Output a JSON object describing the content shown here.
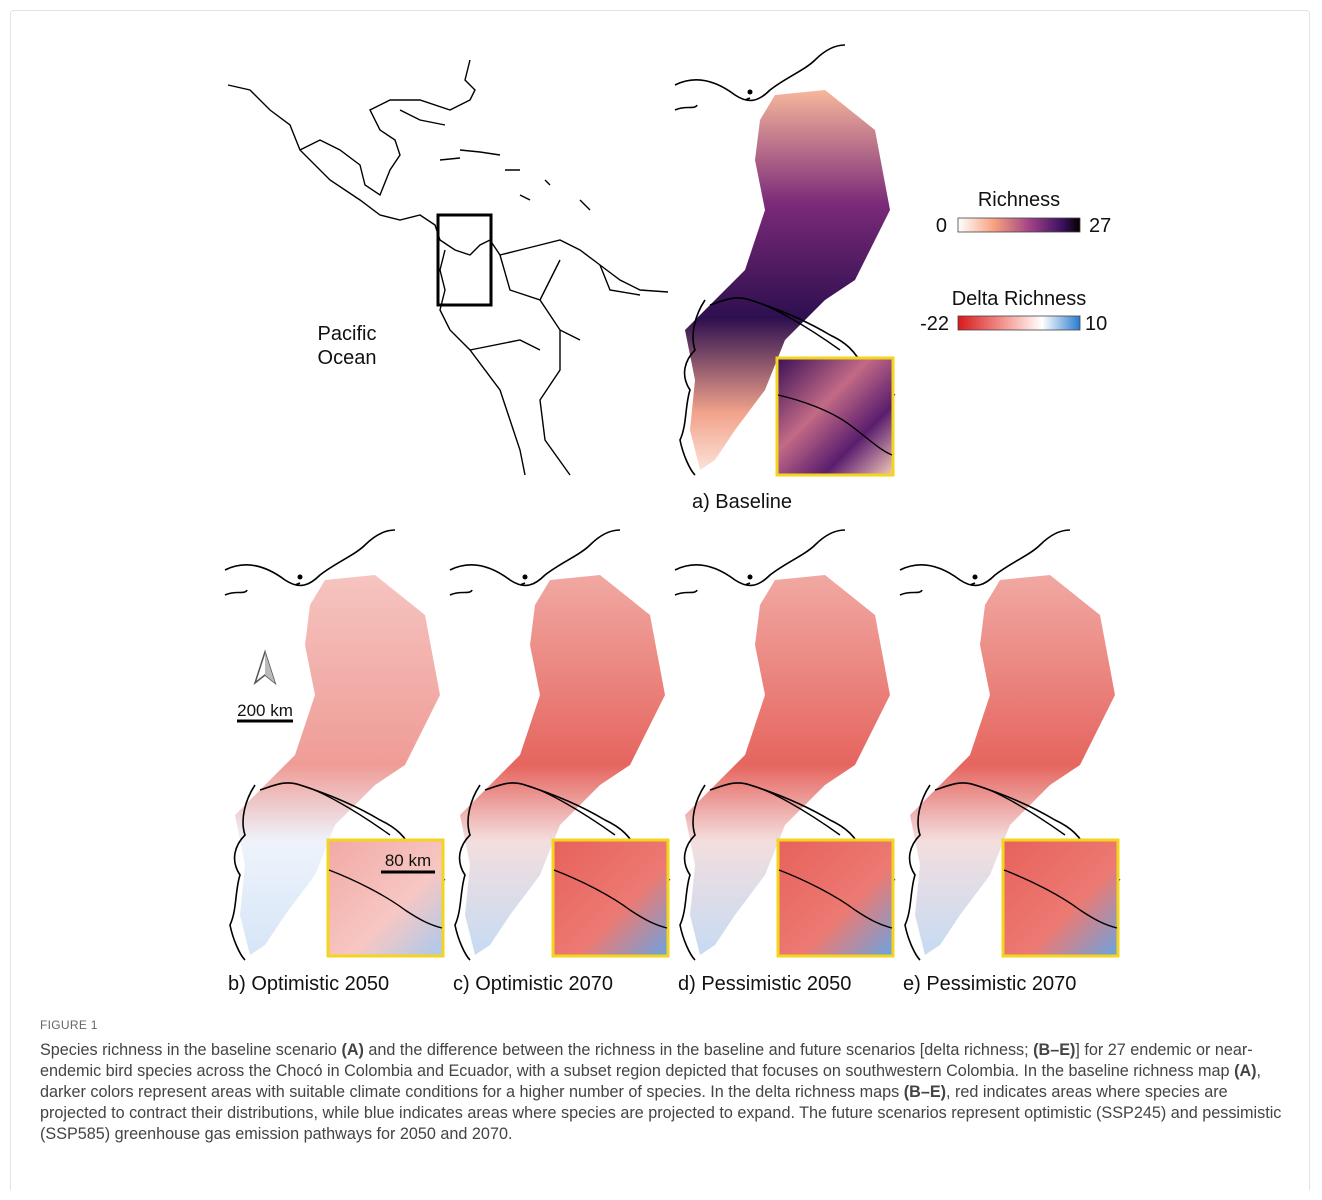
{
  "figure": {
    "map_a": {
      "ocean_label": [
        "Pacific",
        "Ocean"
      ],
      "panel_label": "a) Baseline"
    },
    "legend": {
      "richness": {
        "title": "Richness",
        "min": 0,
        "max": 27
      },
      "delta": {
        "title": "Delta Richness",
        "min": -22,
        "max": 10
      }
    },
    "scale_bars": {
      "main": "200 km",
      "inset": "80 km"
    },
    "panels": [
      "b) Optimistic 2050",
      "c) Optimistic 2070",
      "d) Pessimistic 2050",
      "e) Pessimistic 2070"
    ]
  },
  "caption": {
    "label": "FIGURE 1",
    "segments": [
      "Species richness in the baseline scenario ",
      "(A)",
      " and the difference between the richness in the baseline and future scenarios [delta richness; ",
      "(B–E)",
      "] for 27 endemic or near-endemic bird species across the Chocó in Colombia and Ecuador, with a subset region depicted that focuses on southwestern Colombia. In the baseline richness map ",
      "(A)",
      ", darker colors represent areas with suitable climate conditions for a higher number of species. In the delta richness maps ",
      "(B–E)",
      ", red indicates areas where species are projected to contract their distributions, while blue indicates areas where species are projected to expand. The future scenarios represent optimistic (SSP245) and pessimistic (SSP585) greenhouse gas emission pathways for 2050 and 2070."
    ]
  }
}
